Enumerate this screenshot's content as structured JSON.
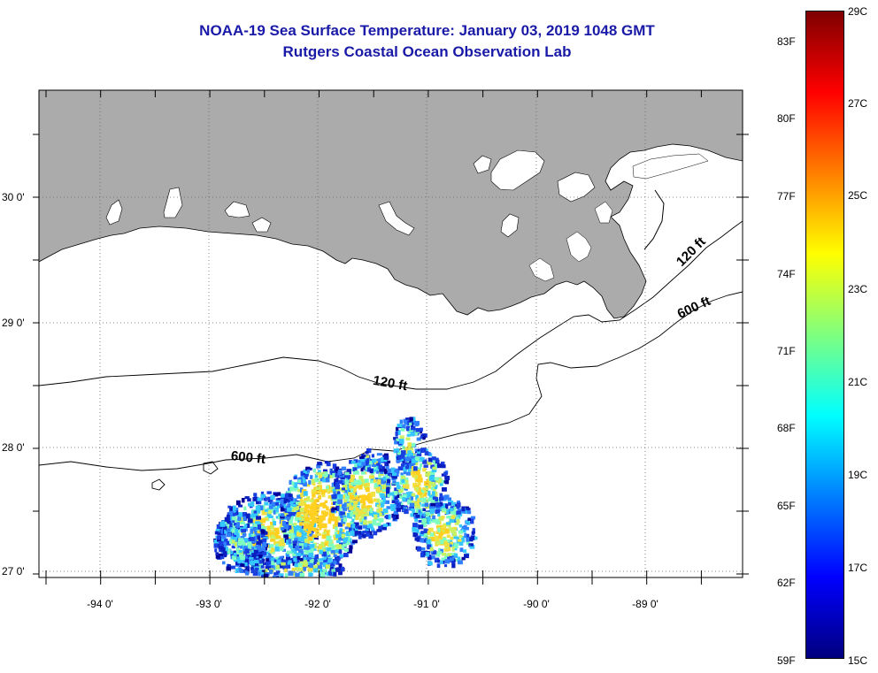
{
  "title": {
    "line1": "NOAA-19 Sea Surface Temperature:  January 03, 2019 1048 GMT",
    "line2": "Rutgers Coastal Ocean Observation Lab"
  },
  "axes": {
    "lat_labels": [
      "30 0'",
      "29 0'",
      "28 0'",
      "27 0'"
    ],
    "lon_labels": [
      "-94 0'",
      "-93 0'",
      "-92 0'",
      "-91 0'",
      "-90 0'",
      "-89 0'"
    ]
  },
  "contours": {
    "label_120_inner": "120 ft",
    "label_120_east": "120 ft",
    "label_600_west": "600 ft",
    "label_600_east": "600 ft"
  },
  "colorbar": {
    "f_labels": [
      "83F",
      "80F",
      "77F",
      "74F",
      "71F",
      "68F",
      "65F",
      "62F",
      "59F"
    ],
    "c_labels": [
      "29C",
      "27C",
      "25C",
      "23C",
      "21C",
      "19C",
      "17C",
      "15C"
    ],
    "stops": [
      "#00007f",
      "#0000ff",
      "#007fff",
      "#00ffff",
      "#7fff7f",
      "#ffff00",
      "#ff7f00",
      "#ff0000",
      "#7f0000"
    ]
  },
  "colors": {
    "land": "#ababab",
    "title": "#1a1aa8"
  }
}
